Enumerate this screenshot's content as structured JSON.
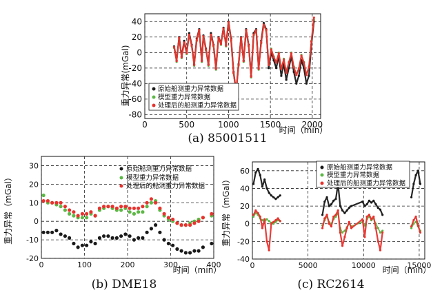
{
  "legend": {
    "raw": "原始船测重力异常数据",
    "model": "模型重力异常数据",
    "processed": "处理后的船测重力异常数据"
  },
  "colors": {
    "raw": "#1a1a1a",
    "model": "#5cb845",
    "processed": "#e8322d"
  },
  "chart_data": [
    {
      "type": "scatter",
      "caption": "(a) 85001511",
      "xlabel": "时间（min）",
      "ylabel": "重力异常(mGal)",
      "xlim": [
        0,
        2100
      ],
      "ylim": [
        -85,
        50
      ],
      "xticks": [
        0,
        500,
        1000,
        1500,
        2000
      ],
      "yticks": [
        -80,
        -60,
        -40,
        -20,
        0,
        20,
        40
      ],
      "legend_position": "bottom-left",
      "series": [
        {
          "name": "原始船测重力异常数据",
          "key": "raw",
          "x": [
            350,
            380,
            410,
            440,
            470,
            500,
            530,
            560,
            590,
            620,
            650,
            680,
            700,
            730,
            760,
            790,
            820,
            850,
            880,
            910,
            940,
            970,
            1000,
            1030,
            1060,
            1090,
            1120,
            1150,
            1180,
            1210,
            1240,
            1270,
            1300,
            1330,
            1360,
            1390,
            1420,
            1450,
            1480,
            1510,
            1540,
            1570,
            1600,
            1630,
            1660,
            1690,
            1720,
            1750,
            1780,
            1810,
            1840,
            1870,
            1900,
            1930,
            1960,
            1990,
            2020
          ],
          "y": [
            8,
            -10,
            20,
            -5,
            15,
            0,
            25,
            10,
            -15,
            18,
            30,
            -10,
            22,
            5,
            -15,
            25,
            10,
            -20,
            20,
            12,
            32,
            10,
            40,
            18,
            -25,
            -50,
            -15,
            20,
            -10,
            30,
            10,
            -30,
            25,
            30,
            -20,
            15,
            38,
            30,
            -20,
            0,
            -10,
            -20,
            -5,
            -30,
            -15,
            -35,
            -20,
            -5,
            -25,
            -40,
            -30,
            -10,
            -20,
            -40,
            -30,
            10,
            40
          ]
        },
        {
          "name": "模型重力异常数据",
          "key": "model",
          "x": [
            350,
            380,
            410,
            440,
            470,
            500,
            530,
            560,
            590,
            620,
            650,
            680,
            700,
            730,
            760,
            790,
            820,
            850,
            880,
            910,
            940,
            970,
            1000,
            1030,
            1060,
            1090,
            1120,
            1150,
            1180,
            1210,
            1240,
            1270,
            1300,
            1330,
            1360,
            1390,
            1420,
            1450,
            1480,
            1510,
            1540,
            1570,
            1600,
            1630,
            1660,
            1690,
            1720,
            1750,
            1780,
            1810,
            1840,
            1870,
            1900,
            1930,
            1960,
            1990,
            2020
          ],
          "y": [
            6,
            -12,
            18,
            -7,
            12,
            -2,
            22,
            8,
            -17,
            15,
            28,
            -12,
            20,
            3,
            -17,
            22,
            8,
            -22,
            18,
            10,
            30,
            8,
            38,
            15,
            -27,
            -52,
            -17,
            18,
            -12,
            28,
            8,
            -32,
            22,
            28,
            -22,
            12,
            35,
            28,
            -15,
            5,
            -5,
            -12,
            0,
            -20,
            -8,
            -25,
            -12,
            0,
            -18,
            -28,
            -20,
            -3,
            -12,
            -28,
            -18,
            15,
            42
          ]
        },
        {
          "name": "处理后的船测重力异常数据",
          "key": "processed",
          "x": [
            350,
            380,
            410,
            440,
            470,
            500,
            530,
            560,
            590,
            620,
            650,
            680,
            700,
            730,
            760,
            790,
            820,
            850,
            880,
            910,
            940,
            970,
            1000,
            1030,
            1060,
            1090,
            1120,
            1150,
            1180,
            1210,
            1240,
            1270,
            1300,
            1330,
            1360,
            1390,
            1420,
            1450,
            1480,
            1510,
            1540,
            1570,
            1600,
            1630,
            1660,
            1690,
            1720,
            1750,
            1780,
            1810,
            1840,
            1870,
            1900,
            1930,
            1960,
            1990,
            2020
          ],
          "y": [
            7,
            -11,
            19,
            -6,
            13,
            -1,
            23,
            9,
            -16,
            16,
            29,
            -11,
            21,
            4,
            -16,
            23,
            9,
            -21,
            19,
            11,
            31,
            9,
            39,
            16,
            -26,
            -51,
            -16,
            19,
            -11,
            29,
            9,
            -31,
            23,
            29,
            -21,
            13,
            36,
            29,
            -16,
            4,
            -6,
            -13,
            -1,
            -21,
            -9,
            -26,
            -13,
            -1,
            -19,
            -29,
            -21,
            -4,
            -13,
            -29,
            -19,
            14,
            45
          ]
        }
      ]
    },
    {
      "type": "scatter",
      "caption": "(b) DME18",
      "xlabel": "时间（min）",
      "ylabel": "重力异常（mGal）",
      "xlim": [
        0,
        400
      ],
      "ylim": [
        -20,
        35
      ],
      "xticks": [
        0,
        100,
        200,
        300,
        400
      ],
      "yticks": [
        -20,
        -10,
        0,
        10,
        20,
        30
      ],
      "legend_position": "top-right",
      "series": [
        {
          "name": "原始船测重力异常数据",
          "key": "raw",
          "x": [
            5,
            15,
            25,
            35,
            45,
            55,
            65,
            75,
            85,
            95,
            105,
            115,
            125,
            135,
            145,
            155,
            165,
            175,
            185,
            195,
            205,
            215,
            225,
            235,
            245,
            255,
            265,
            275,
            285,
            295,
            305,
            315,
            325,
            335,
            345,
            355,
            365,
            375,
            395
          ],
          "y": [
            -6,
            -6,
            -6,
            -5,
            -7,
            -8,
            -9,
            -12,
            -14,
            -13,
            -13,
            -11,
            -12,
            -9,
            -8,
            -8,
            -9,
            -9,
            -8,
            -7,
            -8,
            -10,
            -9,
            -9,
            -6,
            -4,
            -2,
            -6,
            -10,
            -12,
            -13,
            -15,
            -16,
            -17,
            -17,
            -16,
            -16,
            -14,
            -12
          ]
        },
        {
          "name": "模型重力异常数据",
          "key": "model",
          "x": [
            5,
            15,
            25,
            35,
            45,
            55,
            65,
            75,
            85,
            95,
            105,
            115,
            125,
            135,
            145,
            155,
            165,
            175,
            185,
            195,
            205,
            215,
            225,
            235,
            245,
            255,
            265,
            275,
            285,
            295,
            305,
            315,
            325,
            335,
            345,
            355,
            365,
            375,
            395
          ],
          "y": [
            14,
            10,
            10,
            9,
            8,
            6,
            4,
            3,
            2,
            2,
            2,
            4,
            3,
            6,
            7,
            8,
            7,
            6,
            6,
            7,
            5,
            4,
            5,
            5,
            8,
            10,
            11,
            6,
            3,
            1,
            0,
            -1,
            -2,
            -2,
            -1,
            0,
            1,
            2,
            3
          ]
        },
        {
          "name": "处理后的船测重力异常数据",
          "key": "processed",
          "x": [
            5,
            15,
            25,
            35,
            45,
            55,
            65,
            75,
            85,
            95,
            105,
            115,
            125,
            135,
            145,
            155,
            165,
            175,
            185,
            195,
            205,
            215,
            225,
            235,
            245,
            255,
            265,
            275,
            285,
            295,
            305,
            315,
            325,
            335,
            345,
            355,
            365,
            375,
            395
          ],
          "y": [
            11,
            11,
            10,
            10,
            10,
            8,
            6,
            5,
            3,
            4,
            4,
            5,
            3,
            7,
            8,
            8,
            8,
            7,
            8,
            8,
            7,
            7,
            7,
            8,
            10,
            12,
            10,
            7,
            4,
            2,
            1,
            -1,
            -2,
            -2,
            -2,
            -1,
            0,
            2,
            4
          ]
        }
      ]
    },
    {
      "type": "scatter",
      "caption": "(c) RC2614",
      "xlabel": "时间（min）",
      "ylabel": "重力异常（mGal）",
      "xlim": [
        0,
        15500
      ],
      "ylim": [
        -40,
        70
      ],
      "xticks": [
        0,
        5000,
        10000,
        15000
      ],
      "yticks": [
        -40,
        -20,
        0,
        20,
        40,
        60
      ],
      "legend_position": "top-right",
      "series": [
        {
          "name": "原始船测重力异常数据",
          "key": "raw",
          "x": [
            100,
            300,
            500,
            700,
            900,
            1100,
            1300,
            1500,
            1700,
            1900,
            2100,
            2300,
            2500,
            6300,
            6500,
            6700,
            6900,
            7100,
            7300,
            7500,
            7700,
            7900,
            8100,
            8300,
            8500,
            8700,
            8900,
            9900,
            10100,
            10300,
            10500,
            10700,
            10900,
            11100,
            11300,
            11500,
            11700,
            14300,
            14500,
            14700,
            14900,
            15100
          ],
          "y": [
            45,
            58,
            62,
            55,
            42,
            50,
            40,
            35,
            32,
            30,
            28,
            30,
            32,
            10,
            25,
            30,
            20,
            22,
            26,
            28,
            45,
            20,
            15,
            12,
            15,
            18,
            20,
            25,
            20,
            22,
            26,
            24,
            26,
            22,
            18,
            16,
            10,
            30,
            45,
            55,
            60,
            45
          ]
        },
        {
          "name": "模型重力异常数据",
          "key": "model",
          "x": [
            100,
            300,
            500,
            700,
            900,
            1100,
            1300,
            1500,
            1700,
            1900,
            2100,
            2300,
            2500,
            6300,
            6500,
            6700,
            6900,
            7100,
            7300,
            7500,
            7700,
            7900,
            8100,
            8300,
            8500,
            8700,
            8900,
            9900,
            10100,
            10300,
            10500,
            10700,
            10900,
            11100,
            11300,
            11500,
            11700,
            14300,
            14500,
            14700,
            14900,
            15100
          ],
          "y": [
            8,
            12,
            10,
            6,
            4,
            2,
            5,
            3,
            1,
            0,
            2,
            4,
            3,
            -2,
            4,
            8,
            2,
            0,
            5,
            8,
            12,
            -5,
            -10,
            -8,
            -4,
            0,
            -3,
            2,
            -2,
            5,
            8,
            4,
            6,
            0,
            -5,
            -10,
            -8,
            -5,
            0,
            2,
            -3,
            -8
          ]
        },
        {
          "name": "处理后的船测重力异常数据",
          "key": "processed",
          "x": [
            100,
            300,
            500,
            700,
            900,
            1100,
            1300,
            1500,
            1700,
            1900,
            2100,
            2300,
            2500,
            6300,
            6500,
            6700,
            6900,
            7100,
            7300,
            7500,
            7700,
            7900,
            8100,
            8300,
            8500,
            8700,
            8900,
            9900,
            10100,
            10300,
            10500,
            10700,
            10900,
            11100,
            11300,
            11500,
            11700,
            14300,
            14500,
            14700,
            14900,
            15100
          ],
          "y": [
            10,
            15,
            12,
            8,
            -5,
            5,
            -20,
            -30,
            0,
            2,
            4,
            6,
            3,
            -5,
            6,
            10,
            0,
            -3,
            8,
            10,
            15,
            -10,
            -25,
            -15,
            -5,
            2,
            -5,
            5,
            -15,
            8,
            10,
            5,
            8,
            -5,
            -20,
            -30,
            -10,
            -3,
            4,
            8,
            -2,
            -10
          ]
        }
      ]
    }
  ]
}
